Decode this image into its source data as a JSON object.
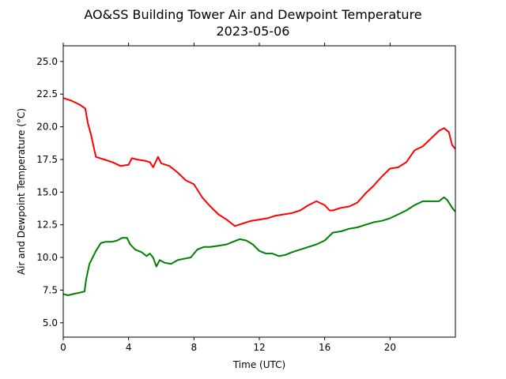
{
  "chart_data": {
    "type": "line",
    "title": "AO&SS Building Tower Air and Dewpoint Temperature",
    "subtitle": "2023-05-06",
    "xlabel": "Time (UTC)",
    "ylabel": "Air and Dewpoint Temperature (°C)",
    "xlim": [
      0,
      24
    ],
    "ylim": [
      3.9,
      26.2
    ],
    "xticks": [
      0,
      4,
      8,
      12,
      16,
      20
    ],
    "xtick_labels": [
      "0",
      "4",
      "8",
      "12",
      "16",
      "20"
    ],
    "yticks": [
      5.0,
      7.5,
      10.0,
      12.5,
      15.0,
      17.5,
      20.0,
      22.5,
      25.0
    ],
    "ytick_labels": [
      "5.0",
      "7.5",
      "10.0",
      "12.5",
      "15.0",
      "17.5",
      "20.0",
      "22.5",
      "25.0"
    ],
    "grid": false,
    "series": [
      {
        "color": "#ff0000",
        "x": [
          0,
          0.5,
          1.0,
          1.35,
          1.5,
          1.7,
          2.0,
          2.5,
          3.0,
          3.5,
          4.0,
          4.2,
          4.5,
          5.0,
          5.3,
          5.5,
          5.8,
          6.0,
          6.5,
          7.0,
          7.5,
          8.0,
          8.5,
          9.0,
          9.5,
          10.0,
          10.5,
          11.0,
          11.5,
          12.0,
          12.5,
          13.0,
          13.5,
          14.0,
          14.5,
          15.0,
          15.5,
          16.0,
          16.3,
          16.5,
          17.0,
          17.5,
          18.0,
          18.5,
          19.0,
          19.5,
          20.0,
          20.5,
          21.0,
          21.5,
          22.0,
          22.5,
          23.0,
          23.3,
          23.6,
          23.8,
          24.0
        ],
        "values": [
          22.2,
          22.0,
          21.7,
          21.4,
          20.3,
          19.4,
          17.7,
          17.5,
          17.3,
          17.0,
          17.1,
          17.6,
          17.5,
          17.4,
          17.3,
          16.9,
          17.7,
          17.2,
          17.0,
          16.5,
          15.9,
          15.6,
          14.6,
          13.9,
          13.3,
          12.9,
          12.4,
          12.6,
          12.8,
          12.9,
          13.0,
          13.2,
          13.3,
          13.4,
          13.6,
          14.0,
          14.3,
          14.0,
          13.6,
          13.6,
          13.8,
          13.9,
          14.2,
          14.9,
          15.5,
          16.2,
          16.8,
          16.9,
          17.3,
          18.2,
          18.5,
          19.1,
          19.7,
          19.9,
          19.6,
          18.6,
          18.3
        ]
      },
      {
        "color": "#008000",
        "x": [
          0,
          0.3,
          0.6,
          1.0,
          1.3,
          1.4,
          1.6,
          1.8,
          2.0,
          2.3,
          2.6,
          3.0,
          3.3,
          3.6,
          3.9,
          4.1,
          4.4,
          4.8,
          5.1,
          5.3,
          5.5,
          5.7,
          5.9,
          6.2,
          6.6,
          7.0,
          7.4,
          7.8,
          8.2,
          8.6,
          9.0,
          9.5,
          10.0,
          10.4,
          10.8,
          11.2,
          11.6,
          12.0,
          12.4,
          12.8,
          13.2,
          13.6,
          14.0,
          14.5,
          15.0,
          15.5,
          16.0,
          16.5,
          17.0,
          17.5,
          18.0,
          18.5,
          19.0,
          19.5,
          20.0,
          20.5,
          21.0,
          21.5,
          22.0,
          22.5,
          23.0,
          23.3,
          23.5,
          23.8,
          24.0
        ],
        "values": [
          7.2,
          7.1,
          7.2,
          7.3,
          7.4,
          8.3,
          9.5,
          10.0,
          10.5,
          11.1,
          11.2,
          11.2,
          11.3,
          11.5,
          11.5,
          11.0,
          10.6,
          10.4,
          10.1,
          10.3,
          10.0,
          9.3,
          9.8,
          9.6,
          9.5,
          9.8,
          9.9,
          10.0,
          10.6,
          10.8,
          10.8,
          10.9,
          11.0,
          11.2,
          11.4,
          11.3,
          11.0,
          10.5,
          10.3,
          10.3,
          10.1,
          10.2,
          10.4,
          10.6,
          10.8,
          11.0,
          11.3,
          11.9,
          12.0,
          12.2,
          12.3,
          12.5,
          12.7,
          12.8,
          13.0,
          13.3,
          13.6,
          14.0,
          14.3,
          14.3,
          14.3,
          14.6,
          14.4,
          13.8,
          13.5
        ]
      }
    ]
  }
}
